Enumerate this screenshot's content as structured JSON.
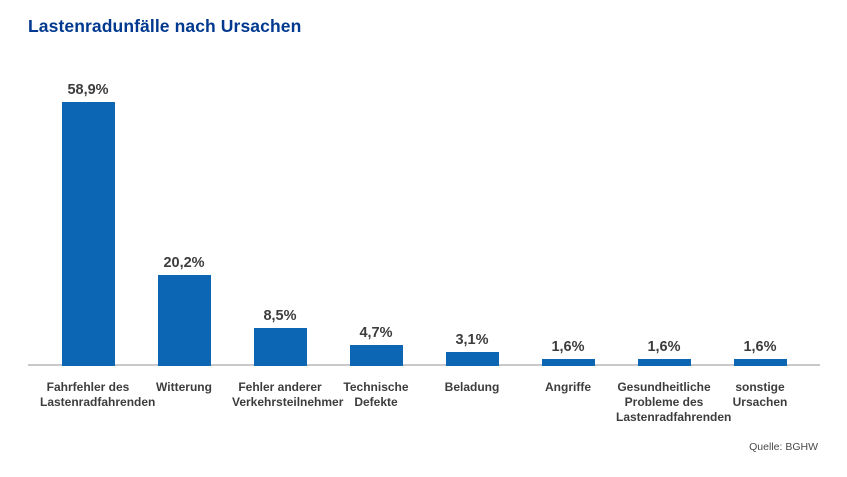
{
  "chart_data": {
    "type": "bar",
    "title": "Lastenradunfälle nach Ursachen",
    "categories": [
      "Fahrfehler des Lastenradfahrenden",
      "Witterung",
      "Fehler anderer Verkehrsteilnehmer",
      "Technische Defekte",
      "Beladung",
      "Angriffe",
      "Gesundheitliche Probleme des Lastenradfahrenden",
      "sonstige Ursachen"
    ],
    "category_lines": [
      [
        "Fahrfehler des",
        "Lastenradfahrenden"
      ],
      [
        "Witterung"
      ],
      [
        "Fehler anderer",
        "Verkehrsteilnehmer"
      ],
      [
        "Technische",
        "Defekte"
      ],
      [
        "Beladung"
      ],
      [
        "Angriffe"
      ],
      [
        "Gesundheitliche",
        "Probleme des",
        "Lastenradfahrenden"
      ],
      [
        "sonstige",
        "Ursachen"
      ]
    ],
    "values": [
      58.9,
      20.2,
      8.5,
      4.7,
      3.1,
      1.6,
      1.6,
      1.6
    ],
    "value_labels": [
      "58,9%",
      "20,2%",
      "8,5%",
      "4,7%",
      "3,1%",
      "1,6%",
      "1,6%",
      "1,6%"
    ],
    "xlabel": "",
    "ylabel": "",
    "ylim": [
      0,
      60
    ],
    "unit": "%",
    "decimal_separator": ",",
    "gridlines": false,
    "y_axis_visible": false,
    "value_labels_position": "above-bars",
    "legend": "none"
  },
  "source": "Quelle: BGHW",
  "colors": {
    "bar": "#0d66b4",
    "title": "#00398f",
    "axis": "#c9c9c9",
    "label": "#3d3d3d",
    "source": "#4a4a4a"
  }
}
